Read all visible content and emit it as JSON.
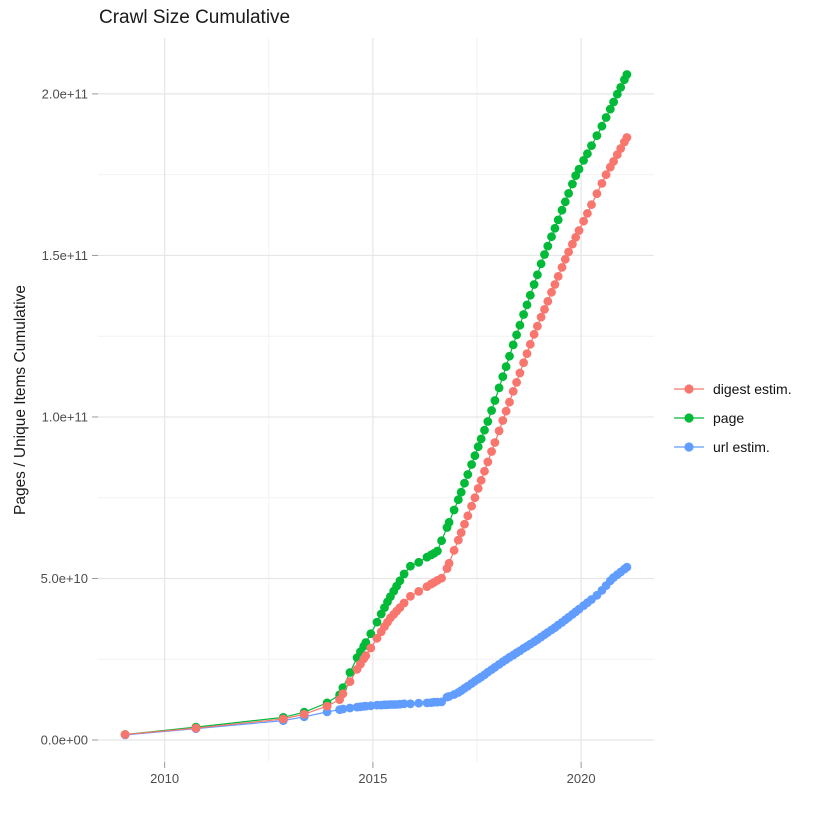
{
  "chart": {
    "title": "Crawl Size Cumulative",
    "y_axis": {
      "title": "Pages / Unique Items Cumulative",
      "tick_labels": [
        "0.0e+00",
        "5.0e+10",
        "1.0e+11",
        "1.5e+11",
        "2.0e+11"
      ],
      "tick_values_1e9": [
        0,
        50,
        100,
        150,
        200
      ],
      "minor_tick_values_1e9": [
        25,
        75,
        125,
        175
      ],
      "range_1e9": [
        -6.8,
        217.3
      ]
    },
    "x_axis": {
      "tick_labels": [
        "2010",
        "2015",
        "2020"
      ],
      "tick_values": [
        2010,
        2015,
        2020
      ],
      "minor_tick_values": [
        2012.5,
        2017.5
      ],
      "range": [
        2008.4,
        2021.75
      ]
    }
  },
  "chart_data": {
    "type": "line",
    "title": "Crawl Size Cumulative",
    "xlabel": "",
    "ylabel": "Pages / Unique Items Cumulative",
    "unit_note": "y values in billions (1e9) of pages / unique items, cumulative over crawls",
    "xlim": [
      2008.4,
      2021.75
    ],
    "ylim_1e9": [
      -6.8,
      217.3
    ],
    "grid": true,
    "markers": true,
    "legend_position": "right",
    "draw_order": [
      1,
      2,
      0
    ],
    "x": [
      2009.05,
      2010.75,
      2012.85,
      2013.35,
      2013.9,
      2014.2,
      2014.28,
      2014.45,
      2014.62,
      2014.7,
      2014.78,
      2014.83,
      2014.95,
      2015.1,
      2015.2,
      2015.28,
      2015.35,
      2015.42,
      2015.5,
      2015.57,
      2015.65,
      2015.75,
      2015.9,
      2016.1,
      2016.3,
      2016.4,
      2016.47,
      2016.55,
      2016.65,
      2016.78,
      2016.83,
      2016.95,
      2017.05,
      2017.12,
      2017.2,
      2017.28,
      2017.37,
      2017.45,
      2017.53,
      2017.6,
      2017.68,
      2017.76,
      2017.85,
      2017.93,
      2018.03,
      2018.12,
      2018.2,
      2018.28,
      2018.37,
      2018.45,
      2018.53,
      2018.62,
      2018.7,
      2018.78,
      2018.87,
      2018.95,
      2019.04,
      2019.12,
      2019.2,
      2019.29,
      2019.37,
      2019.45,
      2019.54,
      2019.62,
      2019.7,
      2019.79,
      2019.87,
      2019.95,
      2020.06,
      2020.15,
      2020.25,
      2020.38,
      2020.5,
      2020.6,
      2020.7,
      2020.78,
      2020.87,
      2020.95,
      2021.04,
      2021.1
    ],
    "series": [
      {
        "name": "digest estim.",
        "color": "#F8766D",
        "values_1e9": [
          1.7,
          3.7,
          6.5,
          8.0,
          10.5,
          12.5,
          14.3,
          18.1,
          21.9,
          23.5,
          25.1,
          26.1,
          28.5,
          31.5,
          33.5,
          35.1,
          36.5,
          37.8,
          38.9,
          39.9,
          41.0,
          42.4,
          44.5,
          46.0,
          47.5,
          48.3,
          48.8,
          49.4,
          50.1,
          53.1,
          54.7,
          58.7,
          61.9,
          64.2,
          66.8,
          69.4,
          72.4,
          75.0,
          77.9,
          80.4,
          83.2,
          86.1,
          89.3,
          92.1,
          95.7,
          98.9,
          101.8,
          104.6,
          107.9,
          110.7,
          113.6,
          116.8,
          119.6,
          122.5,
          125.6,
          128.1,
          130.9,
          133.3,
          135.8,
          138.6,
          141.0,
          143.5,
          146.3,
          148.8,
          151.1,
          153.5,
          155.6,
          157.7,
          160.6,
          163.0,
          165.7,
          169.1,
          172.3,
          175.0,
          177.3,
          179.1,
          181.2,
          183.1,
          185.1,
          186.5
        ]
      },
      {
        "name": "page",
        "color": "#00BA38",
        "values_1e9": [
          1.7,
          4.0,
          7.0,
          8.6,
          11.5,
          14.0,
          16.2,
          20.9,
          25.5,
          27.3,
          29.0,
          30.2,
          32.9,
          36.5,
          39.0,
          41.0,
          42.8,
          44.4,
          46.1,
          47.6,
          49.3,
          51.4,
          53.8,
          55.0,
          56.6,
          57.3,
          57.8,
          58.5,
          61.7,
          65.8,
          67.4,
          71.2,
          74.4,
          76.7,
          79.5,
          82.2,
          85.3,
          88.0,
          90.8,
          93.2,
          95.9,
          98.6,
          102.0,
          105.1,
          109.0,
          112.5,
          115.6,
          118.8,
          122.3,
          125.4,
          128.4,
          131.7,
          134.7,
          137.7,
          141.0,
          144.0,
          147.4,
          150.3,
          152.9,
          155.8,
          158.4,
          161.0,
          164.0,
          166.6,
          169.2,
          172.1,
          174.7,
          176.7,
          179.4,
          181.5,
          184.0,
          187.1,
          190.0,
          192.7,
          195.3,
          197.5,
          199.9,
          202.0,
          204.4,
          206.0
        ]
      },
      {
        "name": "url estim.",
        "color": "#619CFF",
        "values_1e9": [
          1.6,
          3.5,
          6.0,
          7.2,
          8.7,
          9.4,
          9.6,
          9.9,
          10.2,
          10.3,
          10.4,
          10.5,
          10.6,
          10.8,
          10.8,
          10.9,
          10.9,
          11.0,
          11.0,
          11.0,
          11.1,
          11.2,
          11.2,
          11.4,
          11.5,
          11.6,
          11.7,
          11.7,
          11.8,
          13.3,
          13.5,
          14.1,
          14.7,
          15.3,
          16.0,
          16.7,
          17.5,
          18.2,
          18.9,
          19.5,
          20.2,
          21.0,
          21.8,
          22.5,
          23.4,
          24.2,
          24.9,
          25.6,
          26.3,
          27.0,
          27.6,
          28.4,
          29.0,
          29.7,
          30.4,
          31.1,
          31.9,
          32.6,
          33.3,
          34.1,
          34.8,
          35.6,
          36.4,
          37.2,
          38.0,
          38.9,
          39.7,
          40.5,
          41.6,
          42.5,
          43.5,
          44.8,
          46.3,
          47.8,
          49.3,
          50.3,
          51.2,
          52.0,
          52.9,
          53.5
        ]
      }
    ]
  },
  "colors": {
    "background": "#ffffff",
    "grid_major": "#e6e6e6",
    "grid_minor": "#f2f2f2",
    "axis_tick": "#999999",
    "tick_label": "#4d4d4d",
    "text": "#1a1a1a"
  }
}
